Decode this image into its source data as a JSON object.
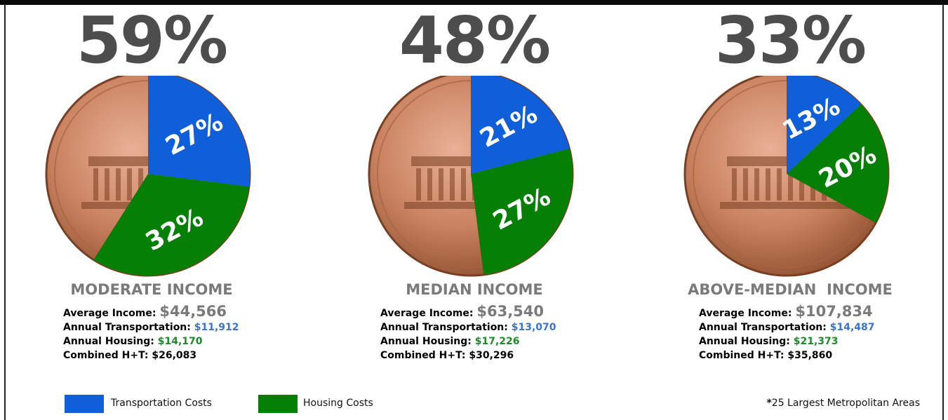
{
  "colors": {
    "transportation": "#0e5fd9",
    "housing": "#067f06",
    "big_pct": "#4d4d4d",
    "income_title": "#7a7a7a"
  },
  "chart_data": [
    {
      "type": "pie",
      "title": "59%",
      "income_label": "MODERATE INCOME",
      "slices": [
        {
          "name": "Transportation Costs",
          "value": 27,
          "label": "27%"
        },
        {
          "name": "Housing Costs",
          "value": 32,
          "label": "32%"
        }
      ],
      "stats": {
        "avg_label": "Average Income: ",
        "avg_value": "$44,566",
        "trans_label": "Annual Transportation: ",
        "trans_value": "$11,912",
        "house_label": "Annual Housing: ",
        "house_value": "$14,170",
        "combined": "Combined H+T: $26,083"
      }
    },
    {
      "type": "pie",
      "title": "48%",
      "income_label": "MEDIAN INCOME",
      "slices": [
        {
          "name": "Transportation Costs",
          "value": 21,
          "label": "21%"
        },
        {
          "name": "Housing Costs",
          "value": 27,
          "label": "27%"
        }
      ],
      "stats": {
        "avg_label": "Average Income: ",
        "avg_value": "$63,540",
        "trans_label": "Annual Transportation: ",
        "trans_value": "$13,070",
        "house_label": "Annual Housing: ",
        "house_value": "$17,226",
        "combined": "Combined H+T: $30,296"
      }
    },
    {
      "type": "pie",
      "title": "33%",
      "income_label": "ABOVE-MEDIAN  INCOME",
      "slices": [
        {
          "name": "Transportation Costs",
          "value": 13,
          "label": "13%"
        },
        {
          "name": "Housing Costs",
          "value": 20,
          "label": "20%"
        }
      ],
      "stats": {
        "avg_label": "Average Income: ",
        "avg_value": "$107,834",
        "trans_label": "Annual Transportation: ",
        "trans_value": "$14,487",
        "house_label": "Annual Housing: ",
        "house_value": "$21,373",
        "combined": "Combined H+T: $35,860"
      }
    }
  ],
  "legend": {
    "transportation": "Transportation Costs",
    "housing": "Housing Costs"
  },
  "footnote": {
    "star": "*",
    "text": "25 Largest Metropolitan Areas"
  }
}
